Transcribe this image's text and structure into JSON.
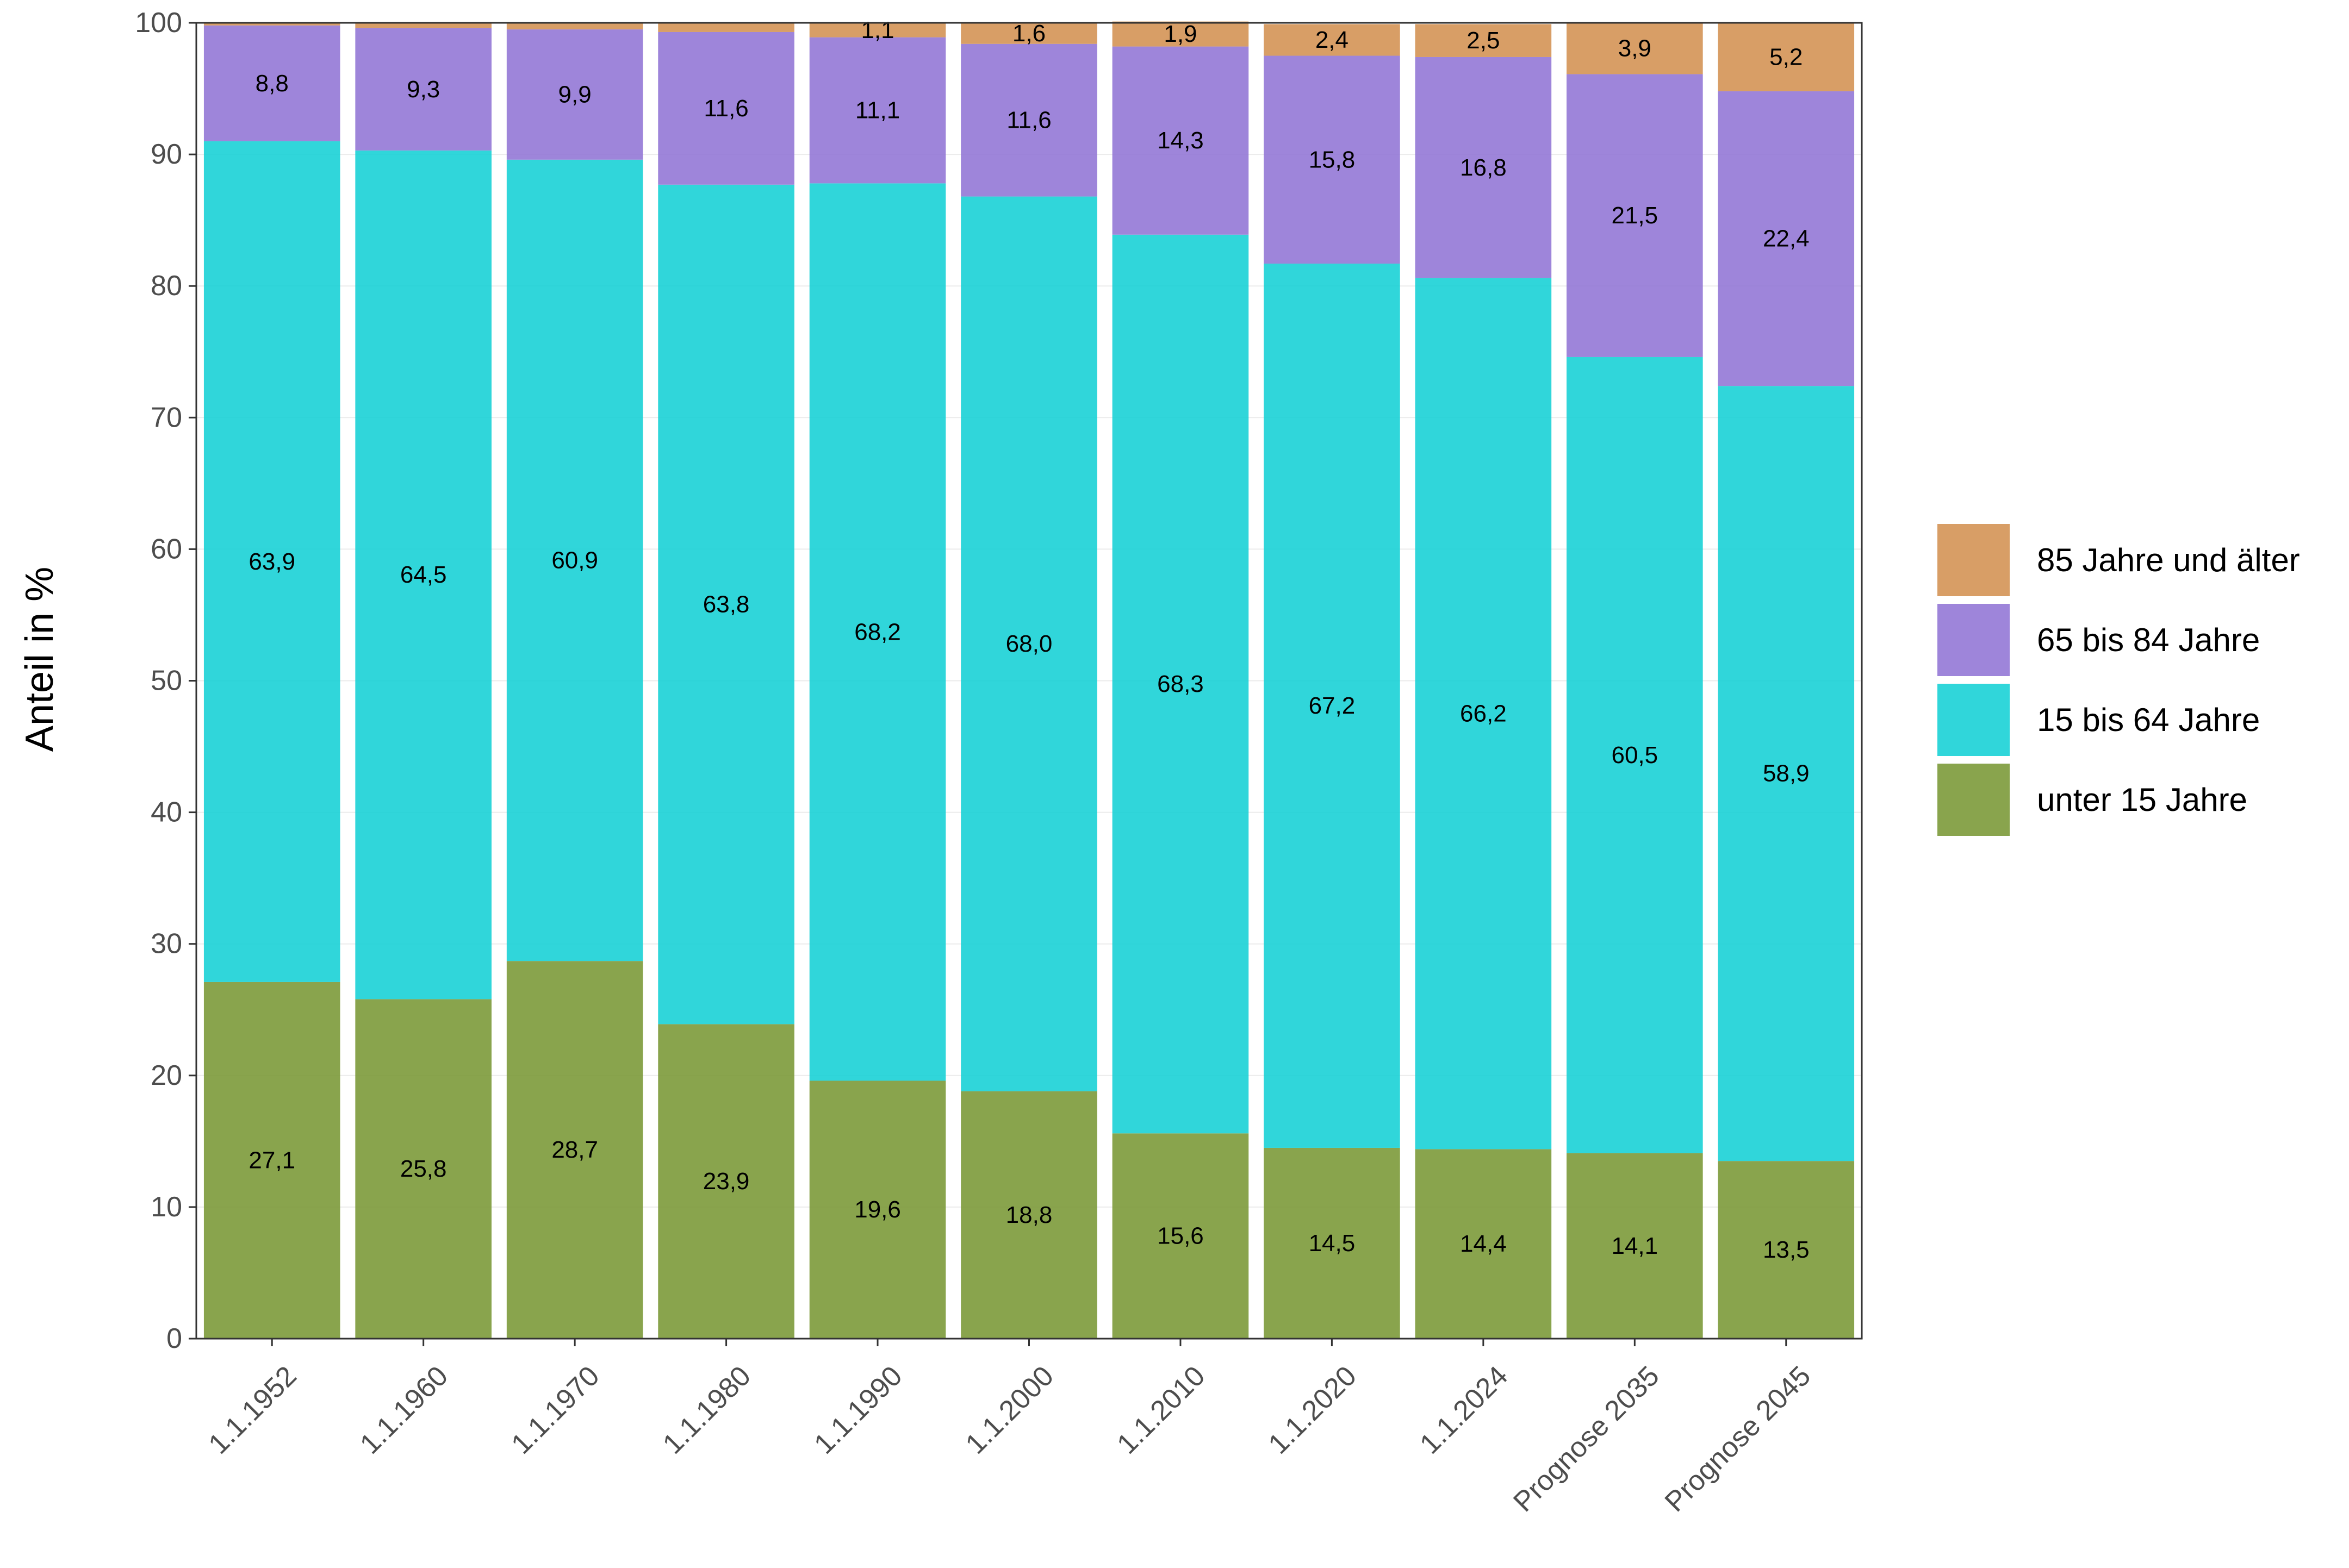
{
  "chart_data": {
    "type": "bar",
    "stacked": true,
    "title": "",
    "xlabel": "",
    "ylabel": "Anteil in %",
    "ylim": [
      0,
      100
    ],
    "yticks": [
      "0",
      "10",
      "20",
      "30",
      "40",
      "50",
      "60",
      "70",
      "80",
      "90",
      "100"
    ],
    "grid": true,
    "legend_position": "right",
    "categories": [
      "1.1.1952",
      "1.1.1960",
      "1.1.1970",
      "1.1.1980",
      "1.1.1990",
      "1.1.2000",
      "1.1.2010",
      "1.1.2020",
      "1.1.2024",
      "Prognose 2035",
      "Prognose 2045"
    ],
    "series": [
      {
        "name": "unter 15 Jahre",
        "color": "#7c9a3a",
        "values": [
          27.1,
          25.8,
          28.7,
          23.9,
          19.6,
          18.8,
          15.6,
          14.5,
          14.4,
          14.1,
          13.5
        ],
        "labels": [
          "27,1",
          "25,8",
          "28,7",
          "23,9",
          "19,6",
          "18,8",
          "15,6",
          "14,5",
          "14,4",
          "14,1",
          "13,5"
        ]
      },
      {
        "name": "15 bis 64 Jahre",
        "color": "#1ad1d6",
        "values": [
          63.9,
          64.5,
          60.9,
          63.8,
          68.2,
          68.0,
          68.3,
          67.2,
          66.2,
          60.5,
          58.9
        ],
        "labels": [
          "63,9",
          "64,5",
          "60,9",
          "63,8",
          "68,2",
          "68,0",
          "68,3",
          "67,2",
          "66,2",
          "60,5",
          "58,9"
        ]
      },
      {
        "name": "65 bis 84 Jahre",
        "color": "#9478d6",
        "values": [
          8.8,
          9.3,
          9.9,
          11.6,
          11.1,
          11.6,
          14.3,
          15.8,
          16.8,
          21.5,
          22.4
        ],
        "labels": [
          "8,8",
          "9,3",
          "9,9",
          "11,6",
          "11,1",
          "11,6",
          "14,3",
          "15,8",
          "16,8",
          "21,5",
          "22,4"
        ]
      },
      {
        "name": "85 Jahre und älter",
        "color": "#d49455",
        "values": [
          0.2,
          0.4,
          0.5,
          0.7,
          1.1,
          1.6,
          1.9,
          2.4,
          2.5,
          3.9,
          5.2
        ],
        "labels": [
          "",
          "",
          "",
          "",
          "1,1",
          "1,6",
          "1,9",
          "2,4",
          "2,5",
          "3,9",
          "5,2"
        ]
      }
    ],
    "legend_order": [
      "85 Jahre und älter",
      "65 bis 84 Jahre",
      "15 bis 64 Jahre",
      "unter 15 Jahre"
    ]
  }
}
